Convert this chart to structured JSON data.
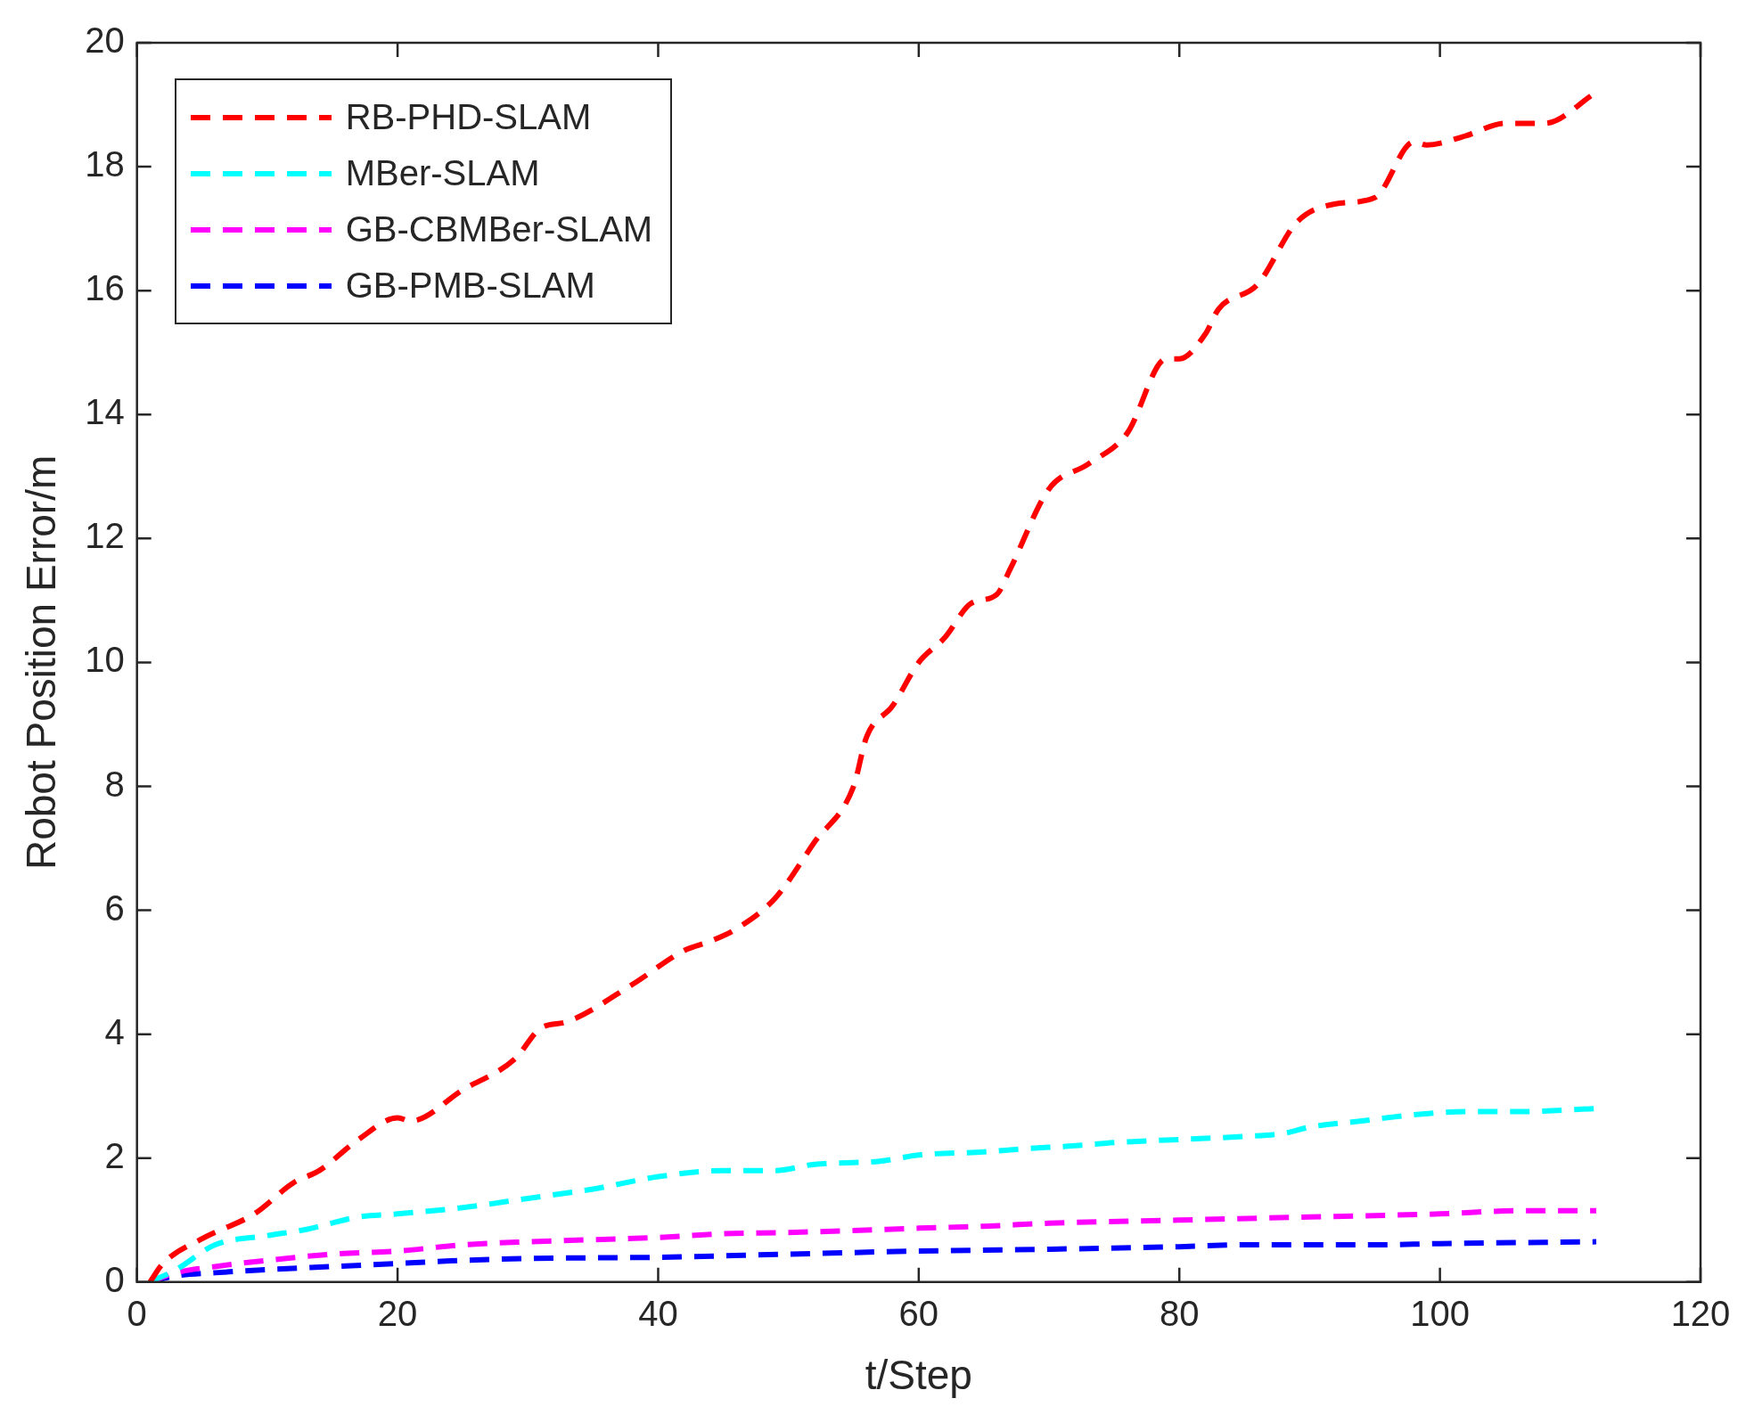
{
  "chart_data": {
    "type": "line",
    "xlabel": "t/Step",
    "ylabel": "Robot Position Error/m",
    "xlim": [
      0,
      120
    ],
    "xticks": [
      0,
      20,
      40,
      60,
      80,
      100,
      120
    ],
    "ylim": [
      0,
      20
    ],
    "yticks": [
      0,
      2,
      4,
      6,
      8,
      10,
      12,
      14,
      16,
      18,
      20
    ],
    "grid": false,
    "legend": "top left",
    "line_style": "dashed",
    "marker": "none",
    "series": [
      {
        "name": "RB-PHD-SLAM",
        "color": "#ff0000",
        "x": [
          1,
          2,
          5,
          9,
          12,
          14,
          17,
          20,
          21,
          25,
          29,
          31,
          33,
          38,
          42,
          44,
          46,
          49,
          52,
          55,
          56,
          58,
          60,
          62,
          64,
          66,
          67,
          70,
          73,
          76,
          79,
          80,
          82,
          83,
          86,
          89,
          92,
          95,
          98,
          99,
          102,
          105,
          108,
          112
        ],
        "values": [
          0,
          0.3,
          0.7,
          1.1,
          1.6,
          1.8,
          2.3,
          2.65,
          2.6,
          3.1,
          3.6,
          4.1,
          4.2,
          4.8,
          5.35,
          5.5,
          5.7,
          6.2,
          7.1,
          8.0,
          8.8,
          9.3,
          10.0,
          10.4,
          10.95,
          11.1,
          11.5,
          12.8,
          13.2,
          13.7,
          14.9,
          14.9,
          15.3,
          15.7,
          16.1,
          17.1,
          17.4,
          17.5,
          18.4,
          18.35,
          18.5,
          18.7,
          18.7,
          19.2
        ]
      },
      {
        "name": "MBer-SLAM",
        "color": "#00ffff",
        "x": [
          1,
          3,
          6,
          10,
          13,
          17,
          20,
          25,
          30,
          35,
          40,
          45,
          49,
          52,
          57,
          60,
          65,
          68,
          72,
          75,
          80,
          85,
          88,
          90,
          94,
          98,
          102,
          106,
          112
        ],
        "values": [
          0,
          0.2,
          0.6,
          0.75,
          0.85,
          1.05,
          1.1,
          1.2,
          1.35,
          1.5,
          1.7,
          1.8,
          1.8,
          1.9,
          1.95,
          2.05,
          2.1,
          2.15,
          2.2,
          2.25,
          2.3,
          2.35,
          2.4,
          2.5,
          2.6,
          2.7,
          2.75,
          2.75,
          2.8
        ]
      },
      {
        "name": "GB-CBMBer-SLAM",
        "color": "#ff00ff",
        "x": [
          1,
          3,
          6,
          10,
          15,
          20,
          25,
          30,
          40,
          45,
          50,
          55,
          60,
          65,
          70,
          80,
          90,
          100,
          106,
          112
        ],
        "values": [
          0,
          0.15,
          0.25,
          0.35,
          0.45,
          0.5,
          0.6,
          0.65,
          0.72,
          0.78,
          0.8,
          0.83,
          0.87,
          0.9,
          0.95,
          1.0,
          1.05,
          1.1,
          1.15,
          1.15
        ]
      },
      {
        "name": "GB-PMB-SLAM",
        "color": "#0000ff",
        "x": [
          1,
          3,
          6,
          10,
          15,
          20,
          25,
          30,
          40,
          50,
          60,
          70,
          80,
          85,
          95,
          100,
          112
        ],
        "values": [
          0,
          0.1,
          0.15,
          0.2,
          0.25,
          0.3,
          0.35,
          0.38,
          0.4,
          0.45,
          0.5,
          0.53,
          0.57,
          0.6,
          0.6,
          0.62,
          0.65
        ]
      }
    ]
  }
}
